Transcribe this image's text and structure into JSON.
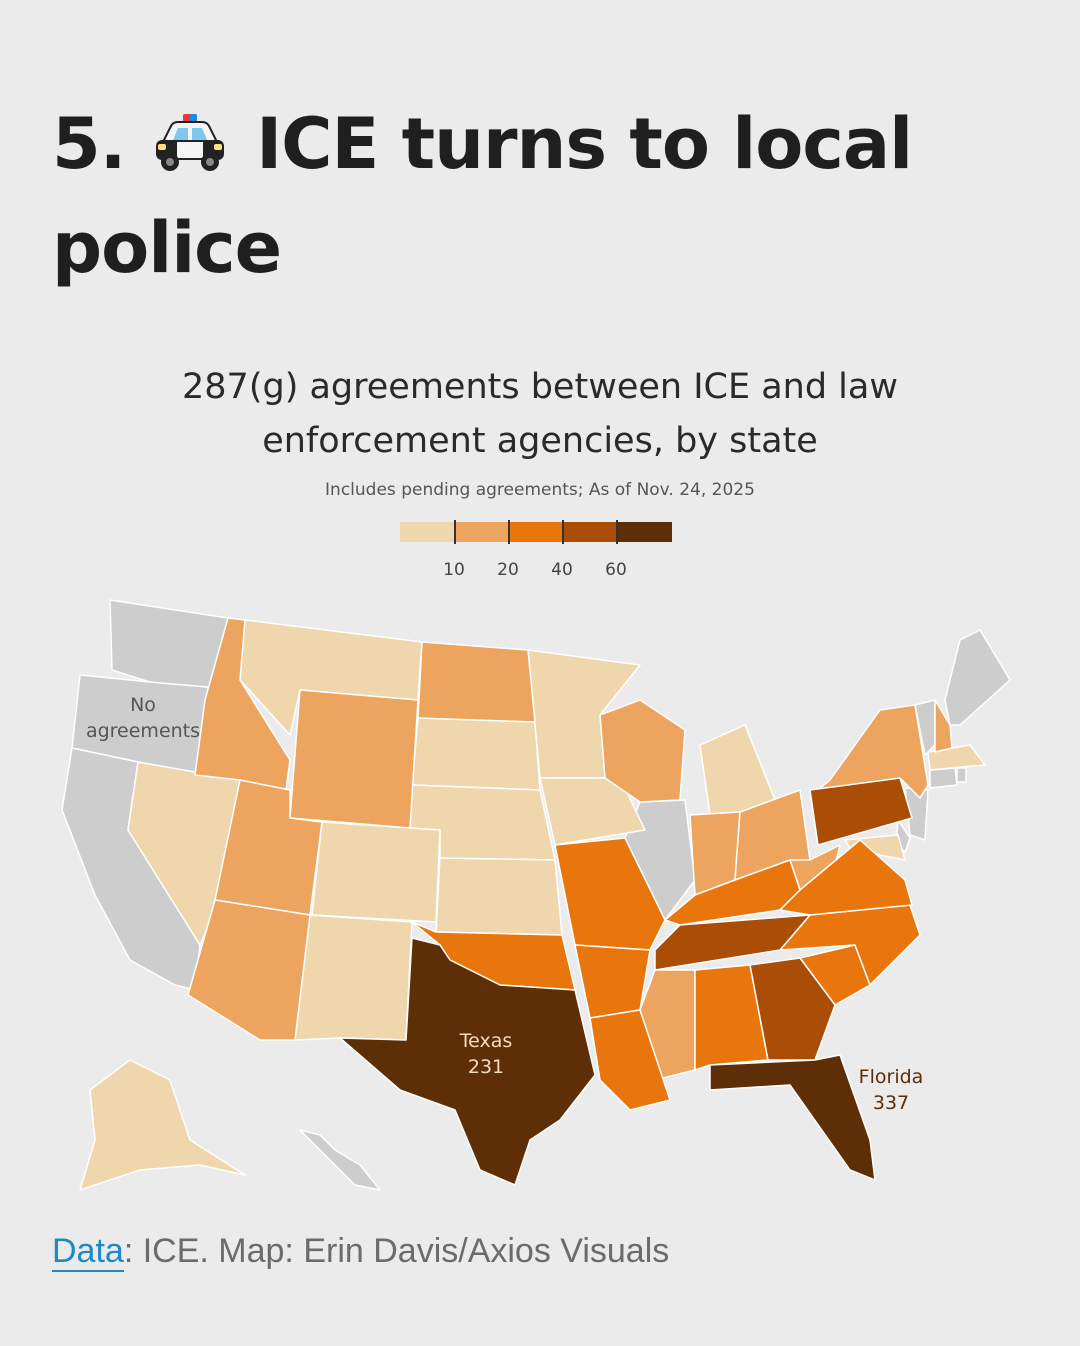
{
  "headline": {
    "number": "5.",
    "icon": "police-car-icon",
    "line1": "ICE turns to local",
    "line2": "police"
  },
  "chart_data": {
    "type": "choropleth",
    "title": "287(g) agreements between ICE and law enforcement agencies, by state",
    "subtitle": "Includes pending agreements; As of Nov. 24, 2025",
    "legend": {
      "thresholds": [
        "10",
        "20",
        "40",
        "60"
      ],
      "colors": [
        "#efd6ad",
        "#eda45e",
        "#e8760c",
        "#a94d07",
        "#5e2e06"
      ],
      "no_data_color": "#cdcdcd"
    },
    "annotations": [
      {
        "label": "No",
        "label2": "agreements"
      },
      {
        "label": "Texas",
        "value": "231"
      },
      {
        "label": "Florida",
        "value": "337"
      }
    ],
    "states": [
      {
        "state": "WA",
        "bin": 0
      },
      {
        "state": "OR",
        "bin": 0
      },
      {
        "state": "CA",
        "bin": 0
      },
      {
        "state": "IL",
        "bin": 0
      },
      {
        "state": "ME",
        "bin": 0
      },
      {
        "state": "VT",
        "bin": 0
      },
      {
        "state": "CT",
        "bin": 0
      },
      {
        "state": "RI",
        "bin": 0
      },
      {
        "state": "NJ",
        "bin": 0
      },
      {
        "state": "DE",
        "bin": 0
      },
      {
        "state": "HI",
        "bin": 0
      },
      {
        "state": "NV",
        "bin": 1
      },
      {
        "state": "MT",
        "bin": 1
      },
      {
        "state": "SD",
        "bin": 1
      },
      {
        "state": "NE",
        "bin": 1
      },
      {
        "state": "KS",
        "bin": 1
      },
      {
        "state": "CO",
        "bin": 1
      },
      {
        "state": "NM",
        "bin": 1
      },
      {
        "state": "MN",
        "bin": 1
      },
      {
        "state": "IA",
        "bin": 1
      },
      {
        "state": "MI",
        "bin": 1
      },
      {
        "state": "MA",
        "bin": 1
      },
      {
        "state": "AK",
        "bin": 1
      },
      {
        "state": "MD",
        "bin": 1
      },
      {
        "state": "ID",
        "bin": 2
      },
      {
        "state": "WY",
        "bin": 2
      },
      {
        "state": "UT",
        "bin": 2
      },
      {
        "state": "AZ",
        "bin": 2
      },
      {
        "state": "ND",
        "bin": 2
      },
      {
        "state": "WI",
        "bin": 2
      },
      {
        "state": "IN",
        "bin": 2
      },
      {
        "state": "OH",
        "bin": 2
      },
      {
        "state": "WV",
        "bin": 2
      },
      {
        "state": "NY",
        "bin": 2
      },
      {
        "state": "NH",
        "bin": 2
      },
      {
        "state": "MS",
        "bin": 2
      },
      {
        "state": "OK",
        "bin": 3
      },
      {
        "state": "MO",
        "bin": 3
      },
      {
        "state": "AR",
        "bin": 3
      },
      {
        "state": "LA",
        "bin": 3
      },
      {
        "state": "KY",
        "bin": 3
      },
      {
        "state": "AL",
        "bin": 3
      },
      {
        "state": "SC",
        "bin": 3
      },
      {
        "state": "NC",
        "bin": 3
      },
      {
        "state": "VA",
        "bin": 3
      },
      {
        "state": "PA",
        "bin": 4
      },
      {
        "state": "TN",
        "bin": 4
      },
      {
        "state": "GA",
        "bin": 4
      },
      {
        "state": "TX",
        "bin": 5
      },
      {
        "state": "FL",
        "bin": 5
      }
    ]
  },
  "source": {
    "link_text": "Data",
    "rest": ": ICE. Map: Erin Davis/Axios Visuals"
  }
}
